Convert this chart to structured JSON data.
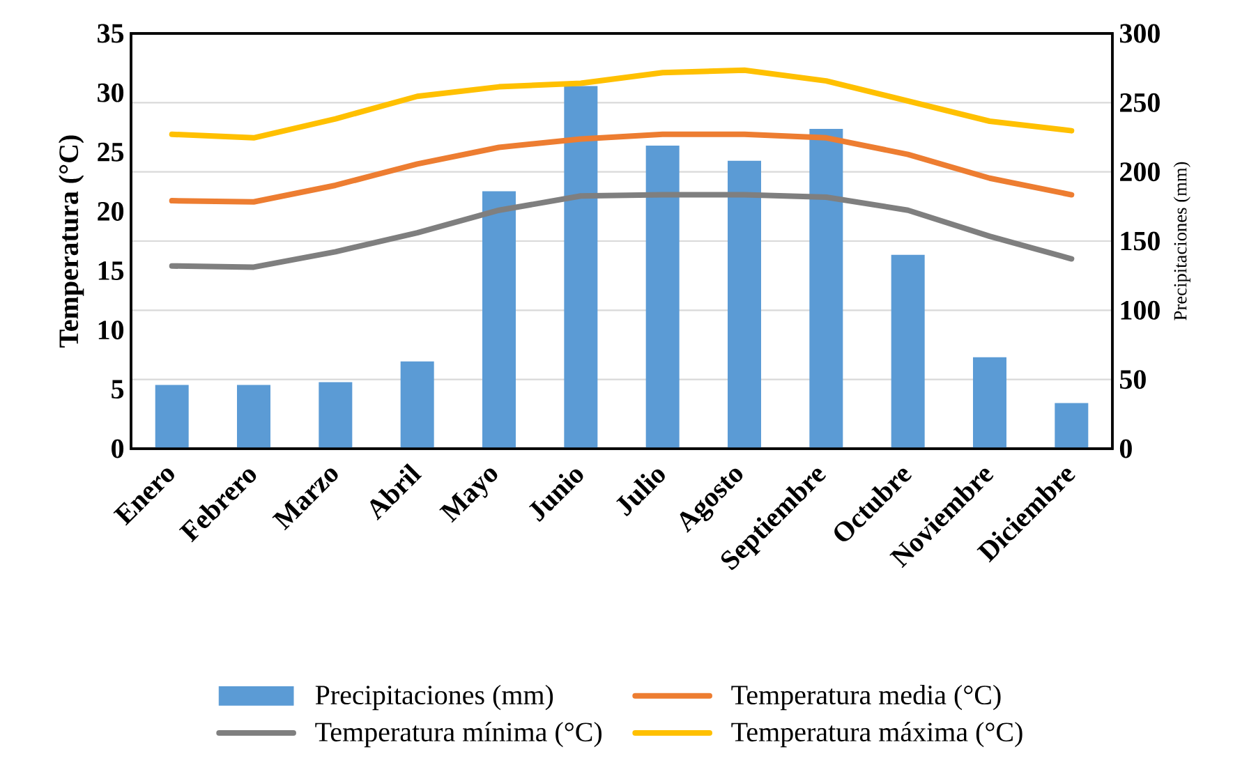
{
  "chart_data": {
    "type": "line",
    "ylabel": "Temperatura (°C)",
    "y2label": "Precipitaciones (mm)",
    "categories": [
      "Enero",
      "Febrero",
      "Marzo",
      "Abril",
      "Mayo",
      "Junio",
      "Julio",
      "Agosto",
      "Septiembre",
      "Octubre",
      "Noviembre",
      "Diciembre"
    ],
    "series": [
      {
        "name": "Precipitaciones (mm)",
        "type": "bar",
        "axis": "y2",
        "color": "#5b9bd5",
        "values": [
          46,
          46,
          48,
          63,
          186,
          262,
          219,
          208,
          231,
          140,
          66,
          33
        ]
      },
      {
        "name": "Temperatura  media (°C)",
        "color": "#ed7d31",
        "values": [
          20.9,
          20.8,
          22.2,
          24.0,
          25.4,
          26.1,
          26.5,
          26.5,
          26.2,
          24.8,
          22.8,
          21.4
        ]
      },
      {
        "name": "Temperatura mínima (°C)",
        "color": "#7f7f7f",
        "values": [
          15.4,
          15.3,
          16.6,
          18.2,
          20.1,
          21.3,
          21.4,
          21.4,
          21.2,
          20.1,
          17.9,
          16.0
        ]
      },
      {
        "name": "Temperatura máxima (°C)",
        "color": "#ffc000",
        "values": [
          26.5,
          26.2,
          27.8,
          29.7,
          30.5,
          30.8,
          31.7,
          31.9,
          31.0,
          29.3,
          27.6,
          26.8
        ]
      }
    ],
    "ylim": [
      0,
      35
    ],
    "yticks": [
      0,
      5,
      10,
      15,
      20,
      25,
      30,
      35
    ],
    "y2lim": [
      0,
      300
    ],
    "y2ticks": [
      0,
      50,
      100,
      150,
      200,
      250,
      300
    ],
    "grid": "y",
    "legend": "bottom",
    "line_style": "solid",
    "marker": "none"
  }
}
